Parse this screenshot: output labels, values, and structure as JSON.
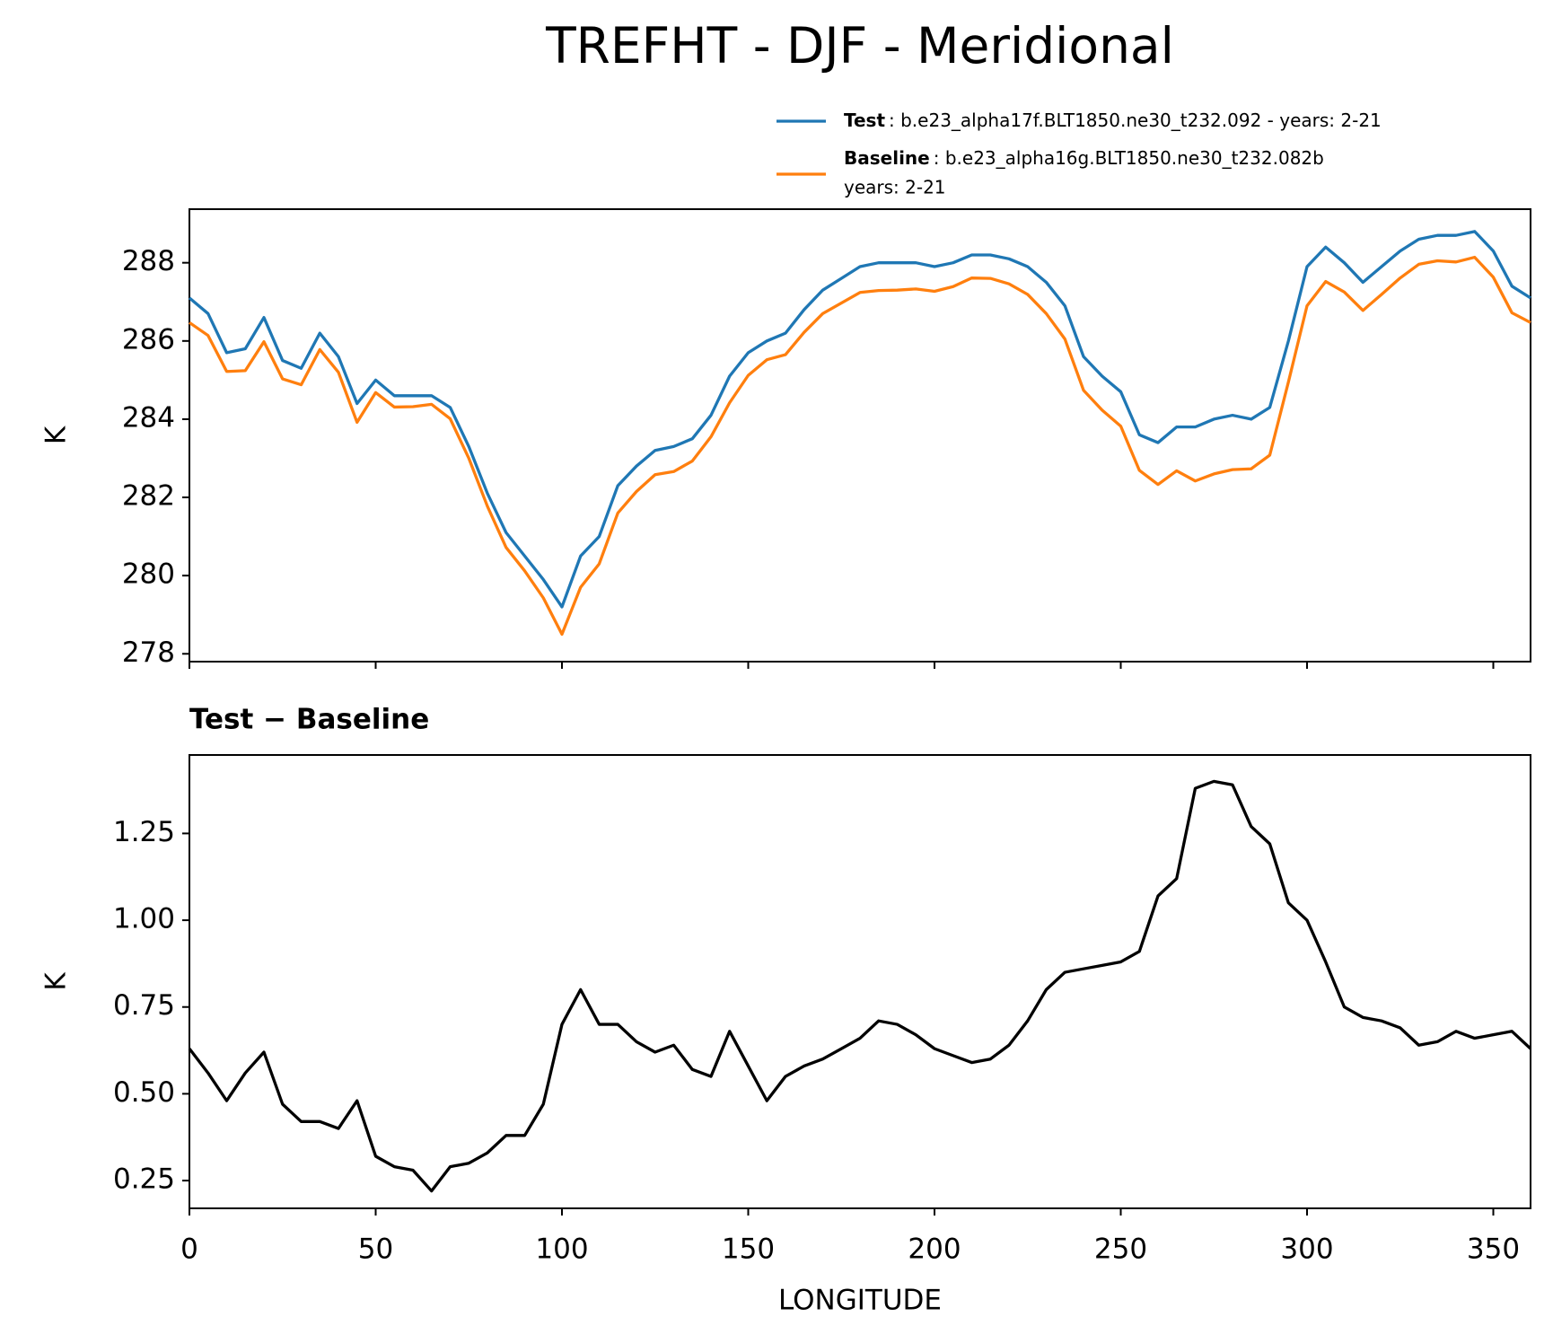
{
  "title": "TREFHT - DJF - Meridional",
  "chart_data": [
    {
      "type": "line",
      "ylabel": "K",
      "x": [
        0,
        5,
        10,
        15,
        20,
        25,
        30,
        35,
        40,
        45,
        50,
        55,
        60,
        65,
        70,
        75,
        80,
        85,
        90,
        95,
        100,
        105,
        110,
        115,
        120,
        125,
        130,
        135,
        140,
        145,
        150,
        155,
        160,
        165,
        170,
        175,
        180,
        185,
        190,
        195,
        200,
        205,
        210,
        215,
        220,
        225,
        230,
        235,
        240,
        245,
        250,
        255,
        260,
        265,
        270,
        275,
        280,
        285,
        290,
        295,
        300,
        305,
        310,
        315,
        320,
        325,
        330,
        335,
        340,
        345,
        350,
        355,
        360
      ],
      "series": [
        {
          "name": "Test",
          "description": ": b.e23_alpha17f.BLT1850.ne30_t232.092 - years: 2-21",
          "color": "#1f77b4",
          "values": [
            287.1,
            286.7,
            285.7,
            285.8,
            286.6,
            285.5,
            285.3,
            286.2,
            285.6,
            284.4,
            285.0,
            284.6,
            284.6,
            284.6,
            284.3,
            283.3,
            282.1,
            281.1,
            280.5,
            279.9,
            279.2,
            280.5,
            281.0,
            282.3,
            282.8,
            283.2,
            283.3,
            283.5,
            284.1,
            285.1,
            285.7,
            286.0,
            286.2,
            286.8,
            287.3,
            287.6,
            287.9,
            288.0,
            288.0,
            288.0,
            287.9,
            288.0,
            288.2,
            288.2,
            288.1,
            287.9,
            287.5,
            286.9,
            285.6,
            285.1,
            284.7,
            283.6,
            283.4,
            283.8,
            283.8,
            284.0,
            284.1,
            284.0,
            284.3,
            286.0,
            287.9,
            288.4,
            288.0,
            287.5,
            287.9,
            288.3,
            288.6,
            288.7,
            288.7,
            288.8,
            288.3,
            287.4,
            287.1
          ]
        },
        {
          "name": "Baseline",
          "description": ": b.e23_alpha16g.BLT1850.ne30_t232.082b",
          "description2": "years: 2-21",
          "color": "#ff7f0e",
          "values": [
            286.47,
            286.14,
            285.22,
            285.24,
            285.98,
            285.03,
            284.88,
            285.78,
            285.2,
            283.92,
            284.68,
            284.31,
            284.32,
            284.38,
            284.01,
            283.0,
            281.77,
            280.72,
            280.12,
            279.43,
            278.5,
            279.7,
            280.3,
            281.6,
            282.15,
            282.58,
            282.66,
            282.93,
            283.55,
            284.42,
            285.12,
            285.52,
            285.65,
            286.22,
            286.7,
            286.97,
            287.24,
            287.29,
            287.3,
            287.33,
            287.27,
            287.39,
            287.61,
            287.6,
            287.46,
            287.19,
            286.7,
            286.05,
            284.74,
            284.23,
            283.82,
            282.69,
            282.33,
            282.68,
            282.42,
            282.6,
            282.71,
            282.73,
            283.08,
            284.95,
            286.9,
            287.52,
            287.25,
            286.78,
            287.19,
            287.61,
            287.96,
            288.05,
            288.02,
            288.14,
            287.63,
            286.72,
            286.47
          ]
        }
      ],
      "xlim": [
        0,
        360
      ],
      "xticks": [
        0,
        50,
        100,
        150,
        200,
        250,
        300,
        350
      ],
      "ylim": [
        277.8,
        289.37
      ],
      "yticks": [
        278,
        280,
        282,
        284,
        286,
        288
      ],
      "legend": "upper right"
    },
    {
      "type": "line",
      "title": "Test − Baseline",
      "xlabel": "LONGITUDE",
      "ylabel": "K",
      "x": [
        0,
        5,
        10,
        15,
        20,
        25,
        30,
        35,
        40,
        45,
        50,
        55,
        60,
        65,
        70,
        75,
        80,
        85,
        90,
        95,
        100,
        105,
        110,
        115,
        120,
        125,
        130,
        135,
        140,
        145,
        150,
        155,
        160,
        165,
        170,
        175,
        180,
        185,
        190,
        195,
        200,
        205,
        210,
        215,
        220,
        225,
        230,
        235,
        240,
        245,
        250,
        255,
        260,
        265,
        270,
        275,
        280,
        285,
        290,
        295,
        300,
        305,
        310,
        315,
        320,
        325,
        330,
        335,
        340,
        345,
        350,
        355,
        360
      ],
      "values": [
        0.63,
        0.56,
        0.48,
        0.56,
        0.62,
        0.47,
        0.42,
        0.42,
        0.4,
        0.48,
        0.32,
        0.29,
        0.28,
        0.22,
        0.29,
        0.3,
        0.33,
        0.38,
        0.38,
        0.47,
        0.7,
        0.8,
        0.7,
        0.7,
        0.65,
        0.62,
        0.64,
        0.57,
        0.55,
        0.68,
        0.58,
        0.48,
        0.55,
        0.58,
        0.6,
        0.63,
        0.66,
        0.71,
        0.7,
        0.67,
        0.63,
        0.61,
        0.59,
        0.6,
        0.64,
        0.71,
        0.8,
        0.85,
        0.86,
        0.87,
        0.88,
        0.91,
        1.07,
        1.12,
        1.38,
        1.4,
        1.39,
        1.27,
        1.22,
        1.05,
        1.0,
        0.88,
        0.75,
        0.72,
        0.71,
        0.69,
        0.64,
        0.65,
        0.68,
        0.66,
        0.67,
        0.68,
        0.63
      ],
      "color": "#000000",
      "xlim": [
        0,
        360
      ],
      "xticks": [
        0,
        50,
        100,
        150,
        200,
        250,
        300,
        350
      ],
      "ylim": [
        0.17,
        1.476
      ],
      "yticks": [
        0.25,
        {
          "value": 0.5,
          "label": "0.50"
        },
        0.75,
        {
          "value": 1,
          "label": "1.00"
        },
        1.25
      ]
    }
  ]
}
